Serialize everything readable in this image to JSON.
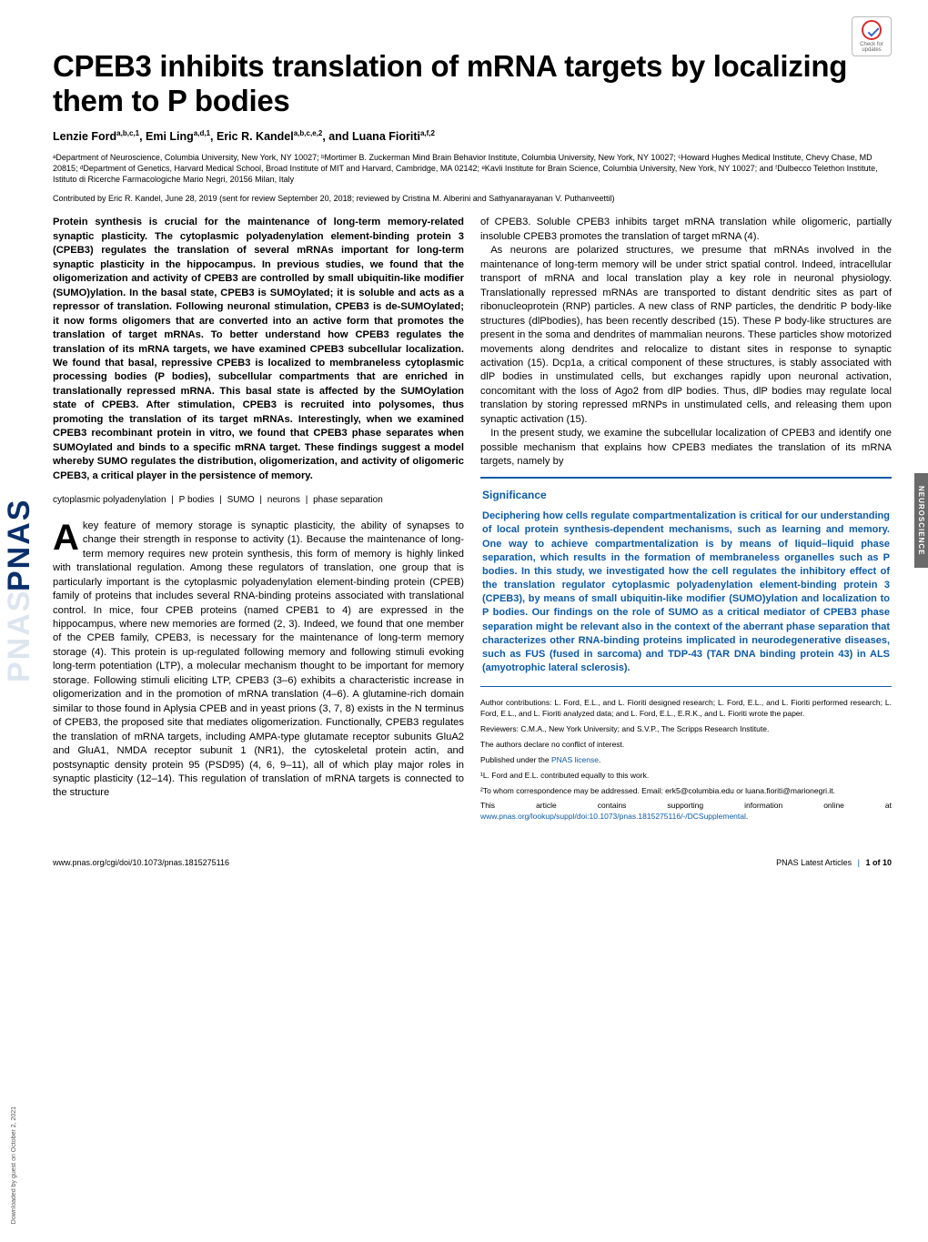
{
  "brand": {
    "vertical": "PNAS",
    "shadow": "PNAS"
  },
  "download_note": "Downloaded by guest on October 2, 2021",
  "crossmark": {
    "line1": "Check for",
    "line2": "updates"
  },
  "side_tab": "NEUROSCIENCE",
  "title": "CPEB3 inhibits translation of mRNA targets by localizing them to P bodies",
  "authors_html": "Lenzie Ford<sup>a,b,c,1</sup>, Emi Ling<sup>a,d,1</sup>, Eric R. Kandel<sup>a,b,c,e,2</sup>, and Luana Fioriti<sup>a,f,2</sup>",
  "affiliations": "ᵃDepartment of Neuroscience, Columbia University, New York, NY 10027; ᵇMortimer B. Zuckerman Mind Brain Behavior Institute, Columbia University, New York, NY 10027; ᶜHoward Hughes Medical Institute, Chevy Chase, MD 20815; ᵈDepartment of Genetics, Harvard Medical School, Broad Institute of MIT and Harvard, Cambridge, MA 02142; ᵉKavli Institute for Brain Science, Columbia University, New York, NY 10027; and ᶠDulbecco Telethon Institute, Istituto di Ricerche Farmacologiche Mario Negri, 20156 Milan, Italy",
  "contributed": "Contributed by Eric R. Kandel, June 28, 2019 (sent for review September 20, 2018; reviewed by Cristina M. Alberini and Sathyanarayanan V. Puthanveettil)",
  "abstract": "Protein synthesis is crucial for the maintenance of long-term memory-related synaptic plasticity. The cytoplasmic polyadenylation element-binding protein 3 (CPEB3) regulates the translation of several mRNAs important for long-term synaptic plasticity in the hippocampus. In previous studies, we found that the oligomerization and activity of CPEB3 are controlled by small ubiquitin-like modifier (SUMO)ylation. In the basal state, CPEB3 is SUMOylated; it is soluble and acts as a repressor of translation. Following neuronal stimulation, CPEB3 is de-SUMOylated; it now forms oligomers that are converted into an active form that promotes the translation of target mRNAs. To better understand how CPEB3 regulates the translation of its mRNA targets, we have examined CPEB3 subcellular localization. We found that basal, repressive CPEB3 is localized to membraneless cytoplasmic processing bodies (P bodies), subcellular compartments that are enriched in translationally repressed mRNA. This basal state is affected by the SUMOylation state of CPEB3. After stimulation, CPEB3 is recruited into polysomes, thus promoting the translation of its target mRNAs. Interestingly, when we examined CPEB3 recombinant protein in vitro, we found that CPEB3 phase separates when SUMOylated and binds to a specific mRNA target. These findings suggest a model whereby SUMO regulates the distribution, oligomerization, and activity of oligomeric CPEB3, a critical player in the persistence of memory.",
  "keywords": [
    "cytoplasmic polyadenylation",
    "P bodies",
    "SUMO",
    "neurons",
    "phase separation"
  ],
  "body_col1_dropcap": "A",
  "body_col1": "key feature of memory storage is synaptic plasticity, the ability of synapses to change their strength in response to activity (1). Because the maintenance of long-term memory requires new protein synthesis, this form of memory is highly linked with translational regulation. Among these regulators of translation, one group that is particularly important is the cytoplasmic polyadenylation element-binding protein (CPEB) family of proteins that includes several RNA-binding proteins associated with translational control. In mice, four CPEB proteins (named CPEB1 to 4) are expressed in the hippocampus, where new memories are formed (2, 3). Indeed, we found that one member of the CPEB family, CPEB3, is necessary for the maintenance of long-term memory storage (4). This protein is up-regulated following memory and following stimuli evoking long-term potentiation (LTP), a molecular mechanism thought to be important for memory storage. Following stimuli eliciting LTP, CPEB3 (3–6) exhibits a characteristic increase in oligomerization and in the promotion of mRNA translation (4–6). A glutamine-rich domain similar to those found in Aplysia CPEB and in yeast prions (3, 7, 8) exists in the N terminus of CPEB3, the proposed site that mediates oligomerization. Functionally, CPEB3 regulates the translation of mRNA targets, including AMPA-type glutamate receptor subunits GluA2 and GluA1, NMDA receptor subunit 1 (NR1), the cytoskeletal protein actin, and postsynaptic density protein 95 (PSD95) (4, 6, 9–11), all of which play major roles in synaptic plasticity (12–14). This regulation of translation of mRNA targets is connected to the structure",
  "body_col2_top": "of CPEB3. Soluble CPEB3 inhibits target mRNA translation while oligomeric, partially insoluble CPEB3 promotes the translation of target mRNA (4).\n As neurons are polarized structures, we presume that mRNAs involved in the maintenance of long-term memory will be under strict spatial control. Indeed, intracellular transport of mRNA and local translation play a key role in neuronal physiology. Translationally repressed mRNAs are transported to distant dendritic sites as part of ribonucleoprotein (RNP) particles. A new class of RNP particles, the dendritic P body-like structures (dlPbodies), has been recently described (15). These P body-like structures are present in the soma and dendrites of mammalian neurons. These particles show motorized movements along dendrites and relocalize to distant sites in response to synaptic activation (15). Dcp1a, a critical component of these structures, is stably associated with dlP bodies in unstimulated cells, but exchanges rapidly upon neuronal activation, concomitant with the loss of Ago2 from dlP bodies. Thus, dlP bodies may regulate local translation by storing repressed mRNPs in unstimulated cells, and releasing them upon synaptic activation (15).\n In the present study, we examine the subcellular localization of CPEB3 and identify one possible mechanism that explains how CPEB3 mediates the translation of its mRNA targets, namely by",
  "significance": {
    "title": "Significance",
    "text": "Deciphering how cells regulate compartmentalization is critical for our understanding of local protein synthesis-dependent mechanisms, such as learning and memory. One way to achieve compartmentalization is by means of liquid–liquid phase separation, which results in the formation of membraneless organelles such as P bodies. In this study, we investigated how the cell regulates the inhibitory effect of the translation regulator cytoplasmic polyadenylation element-binding protein 3 (CPEB3), by means of small ubiquitin-like modifier (SUMO)ylation and localization to P bodies. Our findings on the role of SUMO as a critical mediator of CPEB3 phase separation might be relevant also in the context of the aberrant phase separation that characterizes other RNA-binding proteins implicated in neurodegenerative diseases, such as FUS (fused in sarcoma) and TDP-43 (TAR DNA binding protein 43) in ALS (amyotrophic lateral sclerosis)."
  },
  "footnotes": {
    "contributions": "Author contributions: L. Ford, E.L., and L. Fioriti designed research; L. Ford, E.L., and L. Fioriti performed research; L. Ford, E.L., and L. Fioriti analyzed data; and L. Ford, E.L., E.R.K., and L. Fioriti wrote the paper.",
    "reviewers": "Reviewers: C.M.A., New York University; and S.V.P., The Scripps Research Institute.",
    "conflict": "The authors declare no conflict of interest.",
    "license_prefix": "Published under the ",
    "license_link": "PNAS license",
    "license_suffix": ".",
    "equal": "¹L. Ford and E.L. contributed equally to this work.",
    "corr": "²To whom correspondence may be addressed. Email: erk5@columbia.edu or luana.fioriti@marionegri.it.",
    "si_prefix": "This article contains supporting information online at ",
    "si_link": "www.pnas.org/lookup/suppl/doi:10.1073/pnas.1815275116/-/DCSupplemental",
    "si_suffix": "."
  },
  "footer": {
    "doi": "www.pnas.org/cgi/doi/10.1073/pnas.1815275116",
    "right_label": "PNAS Latest Articles",
    "page": "1 of 10"
  },
  "colors": {
    "brand_blue": "#0b2f6b",
    "link_blue": "#0b5aa8",
    "side_tab_bg": "#6a6a6a",
    "crossmark_red": "#d92b2b",
    "crossmark_blue": "#3366cc"
  }
}
